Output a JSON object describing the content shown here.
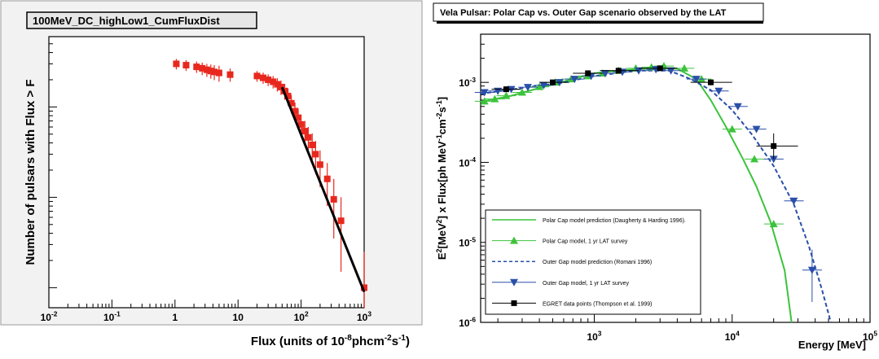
{
  "chart_data": [
    {
      "type": "scatter",
      "title": "100MeV_DC_highLow1_CumFluxDist",
      "xlabel": "Flux (units of 10",
      "xlabel_exp": "-8",
      "xlabel_mid": "phcm",
      "xlabel_exp2": "-2",
      "xlabel_end": "s",
      "xlabel_exp3": "-1",
      "xlabel_close": ")",
      "ylabel": "Number of pulsars with Flux > F",
      "x_scale": "log",
      "y_scale": "log",
      "xlim": [
        0.01,
        1000
      ],
      "ylim": [
        0.6,
        600
      ],
      "x_ticks": [
        {
          "v": 0.01,
          "base": "10",
          "exp": "-2"
        },
        {
          "v": 0.1,
          "base": "10",
          "exp": "-1"
        },
        {
          "v": 1,
          "base": "1",
          "exp": ""
        },
        {
          "v": 10,
          "base": "10",
          "exp": ""
        },
        {
          "v": 100,
          "base": "10",
          "exp": "2"
        },
        {
          "v": 1000,
          "base": "10",
          "exp": "3"
        }
      ],
      "grid": false,
      "legend": "none",
      "colors": {
        "points": "#e8281e",
        "fit": "#000000",
        "frame_bg": "#f2f2f2",
        "title_bg": "#e6e6e6"
      },
      "series": [
        {
          "x": [
            1.05,
            1.5,
            2.2,
            2.7,
            3.2,
            3.7,
            4.2,
            5.0,
            7.5,
            20,
            25,
            30,
            36,
            42,
            48,
            55,
            62,
            70,
            80,
            90,
            100,
            115,
            130,
            150,
            170,
            200,
            260,
            330,
            430,
            1000
          ],
          "y": [
            300,
            290,
            278,
            268,
            258,
            250,
            244,
            238,
            228,
            220,
            210,
            200,
            190,
            178,
            166,
            150,
            132,
            110,
            90,
            76,
            64,
            54,
            46,
            38,
            30,
            23,
            16,
            9.5,
            5.5,
            1.0
          ],
          "y_lo": [
            260,
            250,
            238,
            225,
            215,
            205,
            198,
            190,
            190,
            190,
            180,
            170,
            160,
            148,
            136,
            120,
            104,
            85,
            68,
            56,
            46,
            38,
            32,
            25,
            18,
            13,
            8,
            3.5,
            1.5,
            0.6
          ],
          "y_hi": [
            340,
            330,
            318,
            310,
            300,
            295,
            290,
            286,
            266,
            250,
            240,
            230,
            220,
            208,
            196,
            180,
            160,
            135,
            112,
            96,
            82,
            70,
            60,
            51,
            42,
            33,
            24,
            16,
            10,
            2.5
          ]
        }
      ],
      "fit_line": {
        "x": [
          50,
          1000
        ],
        "y": [
          165,
          0.9
        ]
      }
    },
    {
      "type": "line",
      "title": "Vela Pulsar: Polar Cap vs. Outer Gap scenario observed by the LAT",
      "xlabel": "Energy [MeV]",
      "ylabel_parts": [
        "E",
        "2",
        "[MeV",
        "2",
        "] x Flux[ph MeV",
        "-1",
        "cm",
        "-2",
        "s",
        "-1",
        "]"
      ],
      "x_scale": "log",
      "y_scale": "log",
      "xlim": [
        150,
        100000
      ],
      "ylim": [
        1e-06,
        0.004
      ],
      "x_ticks": [
        {
          "v": 1000,
          "base": "10",
          "exp": "3"
        },
        {
          "v": 10000,
          "base": "10",
          "exp": "4"
        },
        {
          "v": 100000,
          "base": "10",
          "exp": "5"
        }
      ],
      "y_ticks": [
        {
          "v": 0.001,
          "base": "10",
          "exp": "-3"
        },
        {
          "v": 0.0001,
          "base": "10",
          "exp": "-4"
        },
        {
          "v": 1e-05,
          "base": "10",
          "exp": "-5"
        },
        {
          "v": 1e-06,
          "base": "10",
          "exp": "-6"
        }
      ],
      "grid": false,
      "legend": "bottom-left",
      "colors": {
        "polar": "#3cc33c",
        "outer": "#2a4fa8",
        "egret": "#000000"
      },
      "series": [
        {
          "name": "Polar Cap model prediction (Daugherty & Harding 1996).",
          "style": "solid-line",
          "x": [
            150,
            250,
            400,
            700,
            1000,
            1500,
            2500,
            4000,
            5500,
            7000,
            9000,
            12000,
            15000,
            19000,
            24000,
            27000
          ],
          "y": [
            0.00057,
            0.00068,
            0.00085,
            0.0011,
            0.0013,
            0.0014,
            0.0015,
            0.00148,
            0.0011,
            0.0006,
            0.00028,
            0.00011,
            5e-05,
            1.8e-05,
            4.5e-06,
            1e-06
          ]
        },
        {
          "name": "Polar Cap model, 1 yr LAT survey",
          "style": "triangle-up",
          "x": [
            160,
            190,
            230,
            300,
            400,
            520,
            680,
            900,
            1150,
            1500,
            2000,
            2600,
            3200,
            4500,
            6000,
            10000,
            14500,
            20000
          ],
          "y": [
            0.00058,
            0.00062,
            0.00068,
            0.00075,
            0.00088,
            0.001,
            0.0011,
            0.0012,
            0.0013,
            0.0014,
            0.0015,
            0.00155,
            0.0016,
            0.0015,
            0.0011,
            0.00026,
            0.00011,
            1.7e-05
          ]
        },
        {
          "name": "Outer Gap model prediction (Romani 1996)",
          "style": "dashed-line",
          "x": [
            150,
            300,
            600,
            1000,
            2000,
            3500,
            5000,
            7000,
            10000,
            14000,
            20000,
            28000,
            36000,
            45000,
            52000
          ],
          "y": [
            0.00072,
            0.00085,
            0.001,
            0.0012,
            0.0014,
            0.0014,
            0.0011,
            0.0008,
            0.00045,
            0.00022,
            9e-05,
            3e-05,
            9e-06,
            2.5e-06,
            1e-06
          ]
        },
        {
          "name": "Outer Gap model, 1 yr LAT survey",
          "style": "triangle-down",
          "x": [
            160,
            200,
            250,
            330,
            430,
            560,
            720,
            950,
            1200,
            1600,
            2100,
            2800,
            3600,
            5500,
            8000,
            11000,
            15000,
            20000,
            28000,
            38000
          ],
          "y": [
            0.00075,
            0.00078,
            0.00082,
            0.00087,
            0.00092,
            0.001,
            0.0011,
            0.0012,
            0.0013,
            0.00135,
            0.0014,
            0.00145,
            0.0014,
            0.0011,
            0.00078,
            0.0005,
            0.00026,
            0.00011,
            3.3e-05,
            4.5e-06
          ]
        },
        {
          "name": "EGRET data points (Thompson et al. 1999)",
          "style": "square",
          "x": [
            230,
            500,
            900,
            1500,
            3000,
            7000,
            20000
          ],
          "y": [
            0.00082,
            0.001,
            0.0013,
            0.0014,
            0.0015,
            0.001,
            0.00016
          ],
          "y_lo": [
            0.00077,
            0.00095,
            0.00122,
            0.00132,
            0.0014,
            0.00092,
            0.00011
          ],
          "y_hi": [
            0.00087,
            0.00106,
            0.00138,
            0.00148,
            0.0016,
            0.00108,
            0.00023
          ],
          "x_lo": [
            180,
            400,
            700,
            1100,
            2100,
            5000,
            15000
          ],
          "x_hi": [
            290,
            650,
            1150,
            2100,
            4000,
            10000,
            30000
          ]
        }
      ]
    }
  ]
}
